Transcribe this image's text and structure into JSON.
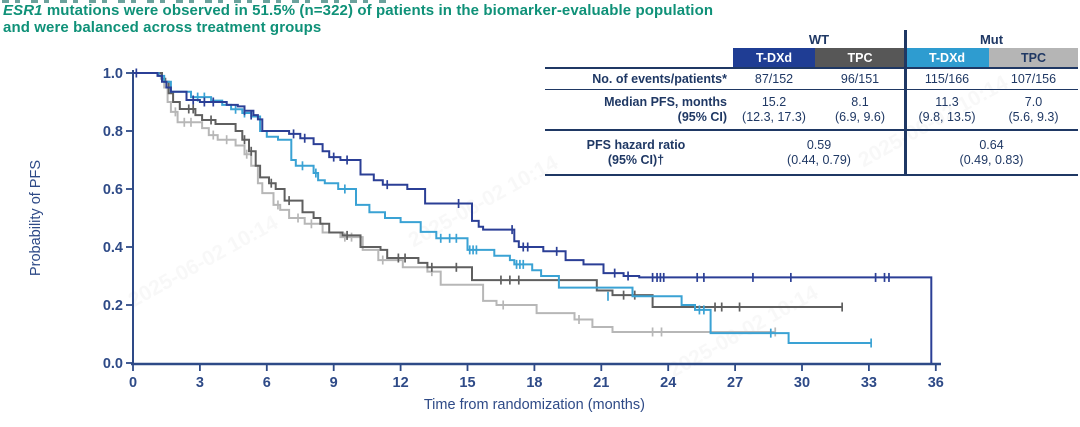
{
  "title": {
    "esr1": "ESR1",
    "line1_rest": " mutations were observed in 51.5% (n=322) of patients in the biomarker-evaluable population",
    "line2": "and were balanced across treatment groups",
    "color": "#0f9178"
  },
  "watermark": "2025-06-02 10:14",
  "table": {
    "group_headers": [
      "WT",
      "Mut"
    ],
    "col_headers": [
      {
        "label": "T-DXd",
        "bg": "#1f3d94",
        "fg": "#ffffff"
      },
      {
        "label": "TPC",
        "bg": "#575757",
        "fg": "#ffffff"
      },
      {
        "label": "T-DXd",
        "bg": "#2e9cd0",
        "fg": "#ffffff"
      },
      {
        "label": "TPC",
        "bg": "#b5b5b5",
        "fg": "#1f3864"
      }
    ],
    "rows": {
      "events": {
        "label": "No. of events/patients*",
        "values": [
          "87/152",
          "96/151",
          "115/166",
          "107/156"
        ]
      },
      "median": {
        "label": "Median PFS, months",
        "label2": "(95% CI)",
        "values": [
          "15.2",
          "8.1",
          "11.3",
          "7.0"
        ],
        "ci": [
          "(12.3, 17.3)",
          "(6.9, 9.6)",
          "(9.8, 13.5)",
          "(5.6, 9.3)"
        ]
      },
      "hr": {
        "label": "PFS hazard ratio",
        "label2": "(95% CI)†",
        "values": [
          "0.59",
          "0.64"
        ],
        "ci": [
          "(0.44, 0.79)",
          "(0.49, 0.83)"
        ]
      }
    }
  },
  "chart_data": {
    "type": "line",
    "subtype": "kaplan-meier-step",
    "xlabel": "Time from randomization (months)",
    "ylabel": "Probability of PFS",
    "xlim": [
      0,
      36
    ],
    "ylim": [
      0.0,
      1.0
    ],
    "xticks": [
      0,
      3,
      6,
      9,
      12,
      15,
      18,
      21,
      24,
      27,
      30,
      33,
      36
    ],
    "yticks": [
      {
        "label": "1.0",
        "v": 1.0
      },
      {
        "label": "0.8",
        "v": 0.8
      },
      {
        "label": "0.6",
        "v": 0.6
      },
      {
        "label": "0.4",
        "v": 0.4
      },
      {
        "label": "0.2",
        "v": 0.2
      },
      {
        "label": "0.0",
        "v": 0.0
      }
    ],
    "grid": false,
    "legend": "none (table serves as legend)",
    "axis_color": "#2e4a87",
    "series": [
      {
        "name": "T-DXd WT",
        "color": "#2b3f96",
        "points": [
          [
            0,
            1.0
          ],
          [
            1.1,
            0.99
          ],
          [
            1.3,
            0.97
          ],
          [
            1.5,
            0.95
          ],
          [
            1.7,
            0.935
          ],
          [
            2.4,
            0.907
          ],
          [
            3.0,
            0.9
          ],
          [
            4.2,
            0.89
          ],
          [
            4.7,
            0.885
          ],
          [
            5.0,
            0.87
          ],
          [
            5.4,
            0.855
          ],
          [
            5.6,
            0.84
          ],
          [
            5.8,
            0.8
          ],
          [
            7.0,
            0.79
          ],
          [
            7.5,
            0.775
          ],
          [
            8.1,
            0.755
          ],
          [
            8.5,
            0.73
          ],
          [
            8.8,
            0.71
          ],
          [
            9.3,
            0.7
          ],
          [
            10.2,
            0.65
          ],
          [
            10.8,
            0.63
          ],
          [
            11.2,
            0.615
          ],
          [
            12.3,
            0.6
          ],
          [
            13.1,
            0.55
          ],
          [
            15.2,
            0.49
          ],
          [
            15.5,
            0.47
          ],
          [
            15.7,
            0.46
          ],
          [
            17.1,
            0.42
          ],
          [
            17.3,
            0.4
          ],
          [
            18.4,
            0.385
          ],
          [
            19.4,
            0.355
          ],
          [
            20.2,
            0.34
          ],
          [
            21.1,
            0.31
          ],
          [
            22.0,
            0.3
          ],
          [
            22.7,
            0.295
          ],
          [
            35.8,
            0.295
          ],
          [
            35.8,
            0.0
          ]
        ],
        "censors": [
          [
            0.15,
            1.0
          ],
          [
            2.7,
            0.907
          ],
          [
            3.2,
            0.9
          ],
          [
            3.6,
            0.9
          ],
          [
            5.0,
            0.87
          ],
          [
            5.3,
            0.855
          ],
          [
            7.2,
            0.79
          ],
          [
            7.7,
            0.775
          ],
          [
            9.0,
            0.71
          ],
          [
            9.6,
            0.7
          ],
          [
            11.4,
            0.615
          ],
          [
            14.6,
            0.55
          ],
          [
            17.0,
            0.46
          ],
          [
            17.5,
            0.4
          ],
          [
            17.7,
            0.4
          ],
          [
            19.0,
            0.385
          ],
          [
            21.6,
            0.31
          ],
          [
            22.2,
            0.3
          ],
          [
            23.3,
            0.295
          ],
          [
            23.5,
            0.295
          ],
          [
            23.65,
            0.295
          ],
          [
            23.8,
            0.295
          ],
          [
            25.3,
            0.295
          ],
          [
            25.6,
            0.295
          ],
          [
            27.8,
            0.295
          ],
          [
            29.5,
            0.295
          ],
          [
            33.3,
            0.295
          ],
          [
            33.7,
            0.295
          ],
          [
            33.9,
            0.295
          ]
        ]
      },
      {
        "name": "T-DXd Mut",
        "color": "#3aa2d4",
        "points": [
          [
            0,
            1.0
          ],
          [
            1.15,
            0.99
          ],
          [
            1.4,
            0.97
          ],
          [
            1.7,
            0.935
          ],
          [
            2.6,
            0.917
          ],
          [
            3.5,
            0.905
          ],
          [
            4.0,
            0.89
          ],
          [
            4.4,
            0.875
          ],
          [
            4.9,
            0.862
          ],
          [
            5.3,
            0.85
          ],
          [
            5.7,
            0.8
          ],
          [
            6.0,
            0.78
          ],
          [
            6.5,
            0.77
          ],
          [
            7.1,
            0.7
          ],
          [
            7.3,
            0.68
          ],
          [
            8.1,
            0.655
          ],
          [
            8.3,
            0.63
          ],
          [
            8.6,
            0.62
          ],
          [
            9.2,
            0.6
          ],
          [
            10.0,
            0.545
          ],
          [
            10.6,
            0.52
          ],
          [
            11.3,
            0.5
          ],
          [
            12.0,
            0.486
          ],
          [
            12.9,
            0.452
          ],
          [
            13.6,
            0.43
          ],
          [
            15.0,
            0.39
          ],
          [
            16.2,
            0.37
          ],
          [
            16.9,
            0.355
          ],
          [
            17.1,
            0.34
          ],
          [
            17.9,
            0.32
          ],
          [
            18.3,
            0.3
          ],
          [
            19.1,
            0.26
          ],
          [
            22.4,
            0.23
          ],
          [
            24.6,
            0.2
          ],
          [
            25.2,
            0.183
          ],
          [
            25.9,
            0.103
          ],
          [
            29.4,
            0.069
          ],
          [
            33.1,
            0.069
          ]
        ],
        "censors": [
          [
            2.9,
            0.917
          ],
          [
            3.2,
            0.917
          ],
          [
            4.6,
            0.875
          ],
          [
            5.0,
            0.862
          ],
          [
            7.6,
            0.68
          ],
          [
            8.2,
            0.655
          ],
          [
            9.5,
            0.6
          ],
          [
            13.8,
            0.43
          ],
          [
            14.2,
            0.43
          ],
          [
            14.5,
            0.43
          ],
          [
            15.1,
            0.39
          ],
          [
            15.25,
            0.39
          ],
          [
            15.4,
            0.39
          ],
          [
            17.2,
            0.34
          ],
          [
            17.35,
            0.34
          ],
          [
            17.5,
            0.34
          ],
          [
            21.3,
            0.23
          ],
          [
            25.4,
            0.183
          ],
          [
            25.6,
            0.183
          ],
          [
            28.6,
            0.103
          ],
          [
            33.1,
            0.069
          ]
        ]
      },
      {
        "name": "TPC WT",
        "color": "#5f5f5f",
        "points": [
          [
            0,
            1.0
          ],
          [
            1.3,
            0.98
          ],
          [
            1.45,
            0.97
          ],
          [
            1.6,
            0.93
          ],
          [
            1.8,
            0.9
          ],
          [
            2.1,
            0.876
          ],
          [
            2.8,
            0.855
          ],
          [
            3.1,
            0.838
          ],
          [
            3.7,
            0.824
          ],
          [
            4.6,
            0.8
          ],
          [
            4.9,
            0.77
          ],
          [
            5.2,
            0.73
          ],
          [
            5.5,
            0.68
          ],
          [
            5.7,
            0.64
          ],
          [
            6.1,
            0.62
          ],
          [
            6.4,
            0.6
          ],
          [
            6.8,
            0.56
          ],
          [
            7.6,
            0.52
          ],
          [
            8.1,
            0.5
          ],
          [
            8.4,
            0.48
          ],
          [
            8.8,
            0.45
          ],
          [
            9.4,
            0.44
          ],
          [
            10.2,
            0.4
          ],
          [
            11.1,
            0.39
          ],
          [
            11.4,
            0.362
          ],
          [
            12.8,
            0.345
          ],
          [
            13.2,
            0.33
          ],
          [
            15.2,
            0.286
          ],
          [
            20.8,
            0.25
          ],
          [
            21.5,
            0.234
          ],
          [
            23.3,
            0.193
          ],
          [
            31.8,
            0.193
          ]
        ],
        "censors": [
          [
            2.5,
            0.876
          ],
          [
            2.7,
            0.876
          ],
          [
            3.5,
            0.838
          ],
          [
            5.0,
            0.77
          ],
          [
            5.3,
            0.73
          ],
          [
            6.2,
            0.62
          ],
          [
            7.0,
            0.56
          ],
          [
            9.6,
            0.44
          ],
          [
            11.9,
            0.362
          ],
          [
            12.2,
            0.362
          ],
          [
            13.4,
            0.33
          ],
          [
            14.5,
            0.33
          ],
          [
            16.5,
            0.286
          ],
          [
            16.9,
            0.286
          ],
          [
            17.3,
            0.286
          ],
          [
            22.0,
            0.234
          ],
          [
            22.5,
            0.234
          ],
          [
            26.1,
            0.193
          ],
          [
            26.4,
            0.193
          ],
          [
            27.2,
            0.193
          ],
          [
            31.8,
            0.193
          ]
        ]
      },
      {
        "name": "TPC Mut",
        "color": "#b7b7b7",
        "points": [
          [
            0,
            1.0
          ],
          [
            1.25,
            0.98
          ],
          [
            1.4,
            0.95
          ],
          [
            1.55,
            0.9
          ],
          [
            1.7,
            0.866
          ],
          [
            2.0,
            0.83
          ],
          [
            3.1,
            0.81
          ],
          [
            3.4,
            0.786
          ],
          [
            3.8,
            0.77
          ],
          [
            4.6,
            0.75
          ],
          [
            5.0,
            0.72
          ],
          [
            5.3,
            0.68
          ],
          [
            5.6,
            0.62
          ],
          [
            5.8,
            0.586
          ],
          [
            6.3,
            0.545
          ],
          [
            6.6,
            0.528
          ],
          [
            7.0,
            0.5
          ],
          [
            7.7,
            0.48
          ],
          [
            8.5,
            0.45
          ],
          [
            9.3,
            0.434
          ],
          [
            10.3,
            0.39
          ],
          [
            11.0,
            0.355
          ],
          [
            12.1,
            0.33
          ],
          [
            13.2,
            0.315
          ],
          [
            13.8,
            0.27
          ],
          [
            15.7,
            0.214
          ],
          [
            16.3,
            0.2
          ],
          [
            18.1,
            0.172
          ],
          [
            19.8,
            0.15
          ],
          [
            20.6,
            0.124
          ],
          [
            21.5,
            0.107
          ],
          [
            28.8,
            0.107
          ]
        ],
        "censors": [
          [
            1.9,
            0.866
          ],
          [
            2.3,
            0.83
          ],
          [
            2.6,
            0.83
          ],
          [
            3.6,
            0.786
          ],
          [
            4.2,
            0.77
          ],
          [
            5.1,
            0.72
          ],
          [
            6.5,
            0.545
          ],
          [
            7.4,
            0.5
          ],
          [
            8.0,
            0.48
          ],
          [
            9.5,
            0.434
          ],
          [
            9.8,
            0.434
          ],
          [
            11.2,
            0.355
          ],
          [
            13.4,
            0.315
          ],
          [
            16.6,
            0.2
          ],
          [
            20.0,
            0.15
          ],
          [
            23.3,
            0.107
          ],
          [
            23.7,
            0.107
          ],
          [
            28.8,
            0.107
          ]
        ]
      }
    ]
  }
}
